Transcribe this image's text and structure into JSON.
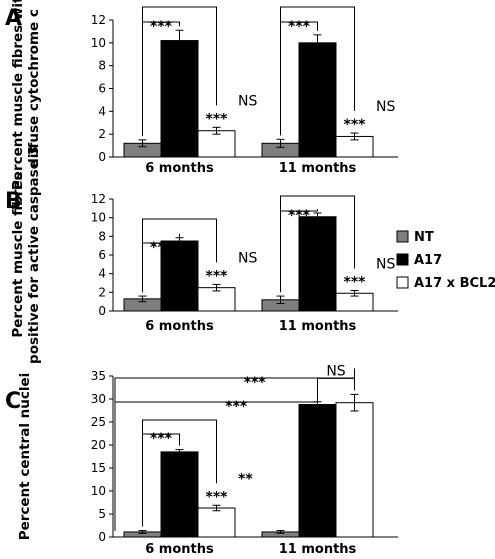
{
  "legend": [
    {
      "name": "NT",
      "color": "#7f7f7f"
    },
    {
      "name": "A17",
      "color": "#000000"
    },
    {
      "name": "A17 x BCL2",
      "color": "#ffffff"
    }
  ],
  "chart_data": [
    {
      "panel": "A",
      "type": "bar",
      "ylabel": "Percent muscle fibres with diffuse cytochrome c",
      "ylabel_lines": [
        "Percent muscle fibres with",
        "diffuse cytochrome c"
      ],
      "ylim": [
        0,
        12
      ],
      "yticks": [
        0,
        2,
        4,
        6,
        8,
        10,
        12
      ],
      "categories": [
        "6 months",
        "11 months"
      ],
      "series": [
        {
          "name": "NT",
          "values": [
            1.2,
            1.2
          ],
          "errors": [
            0.3,
            0.35
          ]
        },
        {
          "name": "A17",
          "values": [
            10.2,
            10.0
          ],
          "errors": [
            0.9,
            0.7
          ]
        },
        {
          "name": "A17 x BCL2",
          "values": [
            2.3,
            1.8
          ],
          "errors": [
            0.3,
            0.3
          ]
        }
      ],
      "annotations": [
        {
          "group": 0,
          "type": "bracket",
          "from": 0,
          "to": 1,
          "label": "***"
        },
        {
          "group": 0,
          "type": "bracket",
          "from": 0,
          "to": 2,
          "label": ""
        },
        {
          "group": 0,
          "type": "above",
          "series": 2,
          "label": "***"
        },
        {
          "group": 0,
          "type": "side",
          "series": 2,
          "label": "NS"
        },
        {
          "group": 1,
          "type": "bracket",
          "from": 0,
          "to": 1,
          "label": "***"
        },
        {
          "group": 1,
          "type": "bracket",
          "from": 0,
          "to": 2,
          "label": ""
        },
        {
          "group": 1,
          "type": "above",
          "series": 2,
          "label": "***"
        },
        {
          "group": 1,
          "type": "side",
          "series": 2,
          "label": "NS"
        }
      ]
    },
    {
      "panel": "B",
      "type": "bar",
      "ylabel": "Percent muscle fibres positive for active caspase 3",
      "ylabel_lines": [
        "Percent muscle fibres",
        "positive for active caspase 3"
      ],
      "ylim": [
        0,
        12
      ],
      "yticks": [
        0,
        2,
        4,
        6,
        8,
        10,
        12
      ],
      "categories": [
        "6 months",
        "11 months"
      ],
      "series": [
        {
          "name": "NT",
          "values": [
            1.3,
            1.2
          ],
          "errors": [
            0.3,
            0.4
          ]
        },
        {
          "name": "A17",
          "values": [
            7.5,
            10.1
          ],
          "errors": [
            0.35,
            0.4
          ]
        },
        {
          "name": "A17 x BCL2",
          "values": [
            2.5,
            1.9
          ],
          "errors": [
            0.35,
            0.3
          ]
        }
      ],
      "annotations": [
        {
          "group": 0,
          "type": "bracket",
          "from": 0,
          "to": 1,
          "label": "***"
        },
        {
          "group": 0,
          "type": "bracket",
          "from": 0,
          "to": 2,
          "label": ""
        },
        {
          "group": 0,
          "type": "above",
          "series": 2,
          "label": "***"
        },
        {
          "group": 0,
          "type": "side",
          "series": 2,
          "label": "NS"
        },
        {
          "group": 1,
          "type": "bracket",
          "from": 0,
          "to": 1,
          "label": "***"
        },
        {
          "group": 1,
          "type": "bracket",
          "from": 0,
          "to": 2,
          "label": ""
        },
        {
          "group": 1,
          "type": "above",
          "series": 2,
          "label": "***"
        },
        {
          "group": 1,
          "type": "side",
          "series": 2,
          "label": "NS"
        }
      ]
    },
    {
      "panel": "C",
      "type": "bar",
      "ylabel": "Percent central nuclei",
      "ylabel_lines": [
        "Percent central nuclei"
      ],
      "ylim": [
        0,
        35
      ],
      "yticks": [
        0,
        5,
        10,
        15,
        20,
        25,
        30,
        35
      ],
      "categories": [
        "6 months",
        "11 months"
      ],
      "series": [
        {
          "name": "NT",
          "values": [
            1.1,
            1.1
          ],
          "errors": [
            0.3,
            0.3
          ]
        },
        {
          "name": "A17",
          "values": [
            18.5,
            28.8
          ],
          "errors": [
            0.5,
            0.6
          ]
        },
        {
          "name": "A17 x BCL2",
          "values": [
            6.3,
            29.2
          ],
          "errors": [
            0.6,
            1.8
          ]
        }
      ],
      "annotations": [
        {
          "group": 0,
          "type": "bracket",
          "from": 0,
          "to": 1,
          "label": "***"
        },
        {
          "group": 0,
          "type": "bracket",
          "from": 0,
          "to": 2,
          "label": ""
        },
        {
          "group": 0,
          "type": "above",
          "series": 2,
          "label": "***"
        },
        {
          "group": 0,
          "type": "side",
          "series": 2,
          "label": "**"
        },
        {
          "group": 1,
          "type": "hook",
          "series": 1,
          "label": "***"
        },
        {
          "group": 1,
          "type": "hook",
          "series": 2,
          "label": "***"
        },
        {
          "group": 1,
          "type": "bracket",
          "from": 1,
          "to": 2,
          "label": "NS"
        }
      ]
    }
  ]
}
